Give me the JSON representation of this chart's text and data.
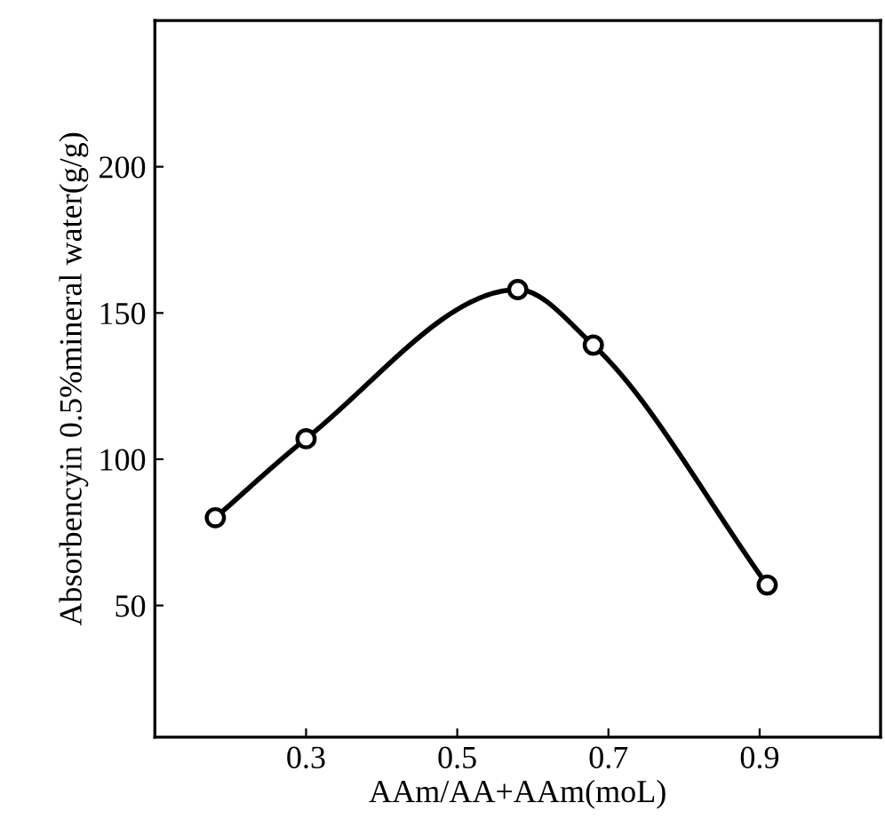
{
  "chart_data": {
    "type": "line",
    "xlabel": "AAm/AA+AAm(moL)",
    "ylabel": "Absorbencyin 0.5%mineral water(g/g)",
    "x": [
      0.18,
      0.3,
      0.58,
      0.68,
      0.91
    ],
    "series": [
      {
        "color": "#000000",
        "values": [
          80,
          107,
          158,
          139,
          57
        ]
      }
    ],
    "xlim": [
      0.1,
      1.06
    ],
    "ylim": [
      5,
      250
    ],
    "xticks": [
      0.3,
      0.5,
      0.7,
      0.9
    ],
    "yticks": [
      50,
      100,
      150,
      200
    ],
    "marker": "circle",
    "line_style": "solid",
    "grid": false,
    "legend": false
  }
}
